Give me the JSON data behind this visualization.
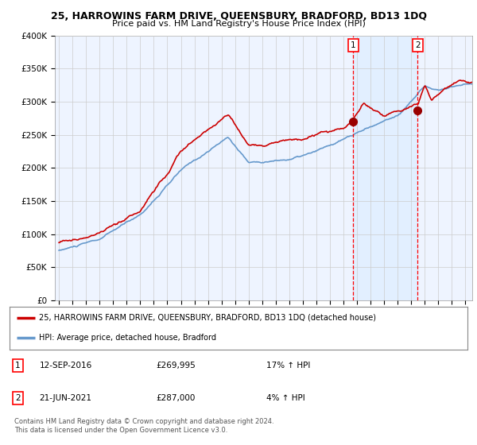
{
  "title": "25, HARROWINS FARM DRIVE, QUEENSBURY, BRADFORD, BD13 1DQ",
  "subtitle": "Price paid vs. HM Land Registry's House Price Index (HPI)",
  "ylabel_ticks": [
    "£0",
    "£50K",
    "£100K",
    "£150K",
    "£200K",
    "£250K",
    "£300K",
    "£350K",
    "£400K"
  ],
  "ytick_values": [
    0,
    50000,
    100000,
    150000,
    200000,
    250000,
    300000,
    350000,
    400000
  ],
  "ylim": [
    0,
    400000
  ],
  "hpi_color": "#6699cc",
  "hpi_fill_color": "#ddeeff",
  "price_color": "#cc0000",
  "shade_color": "#ddeeff",
  "marker1_date": 2016.71,
  "marker1_price": 269995,
  "marker2_date": 2021.47,
  "marker2_price": 287000,
  "legend_line1": "25, HARROWINS FARM DRIVE, QUEENSBURY, BRADFORD, BD13 1DQ (detached house)",
  "legend_line2": "HPI: Average price, detached house, Bradford",
  "footnote": "Contains HM Land Registry data © Crown copyright and database right 2024.\nThis data is licensed under the Open Government Licence v3.0.",
  "bg_color": "#ffffff",
  "plot_bg_color": "#eef4ff",
  "grid_color": "#cccccc"
}
